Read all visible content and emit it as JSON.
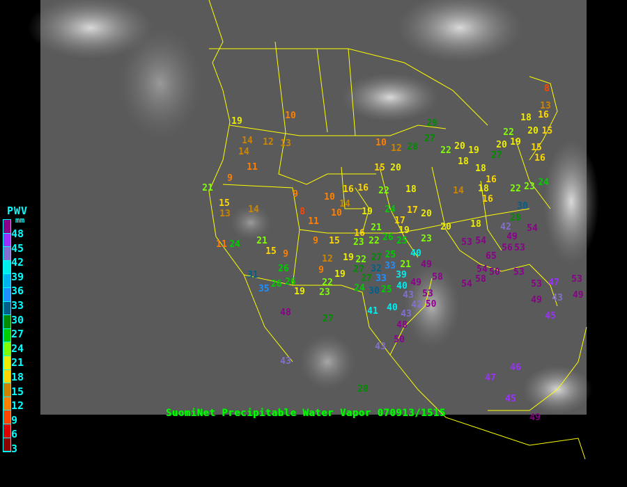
{
  "title": "SuomiNet Precipitable Water Vapor 070913/1515",
  "legend": {
    "title": "PWV",
    "unit": "mm",
    "ticks": [
      "48",
      "45",
      "42",
      "39",
      "36",
      "33",
      "30",
      "27",
      "24",
      "21",
      "18",
      "15",
      "12",
      "9",
      "6",
      "3"
    ],
    "colors": [
      "#8b008b",
      "#9b30ff",
      "#8470d0",
      "#00eeee",
      "#00b2ee",
      "#1e90ff",
      "#00608b",
      "#008b00",
      "#00cd00",
      "#7fff00",
      "#eeee00",
      "#ffd700",
      "#cd8500",
      "#ff8000",
      "#ff4500",
      "#dd0000",
      "#8b0000"
    ]
  },
  "colors": {
    "borders": "#ffff00",
    "background": "#000000",
    "satellite": "#555555"
  },
  "stations": [
    19,
    14,
    14,
    12,
    13,
    10,
    11,
    9,
    21,
    15,
    13,
    14,
    9,
    8,
    11,
    10,
    10,
    14,
    16,
    16,
    19,
    10,
    12,
    15,
    20,
    28,
    29,
    27,
    22,
    18,
    24,
    17,
    17,
    20,
    19,
    21,
    16,
    26,
    25,
    22,
    23,
    15,
    9,
    12,
    9,
    19,
    22,
    27,
    25,
    33,
    32,
    21,
    40,
    49,
    39,
    33,
    27,
    27,
    19,
    22,
    23,
    24,
    30,
    25,
    40,
    49,
    43,
    42,
    58,
    53,
    50,
    40,
    41,
    43,
    48,
    50,
    43,
    23,
    20,
    18,
    53,
    54,
    42,
    54,
    49,
    56,
    53,
    65,
    11,
    24,
    21,
    15,
    9,
    26,
    26,
    26,
    35,
    31,
    19,
    48,
    27,
    28,
    43,
    47,
    46,
    45,
    49,
    8,
    13,
    16,
    18,
    20,
    15,
    19,
    20,
    27,
    22,
    15,
    16,
    22,
    20,
    19,
    18,
    18,
    16,
    18,
    16,
    14,
    22,
    23,
    24,
    30,
    28,
    54,
    58,
    50,
    54,
    53,
    53,
    43,
    45,
    49,
    47,
    53,
    49
  ]
}
